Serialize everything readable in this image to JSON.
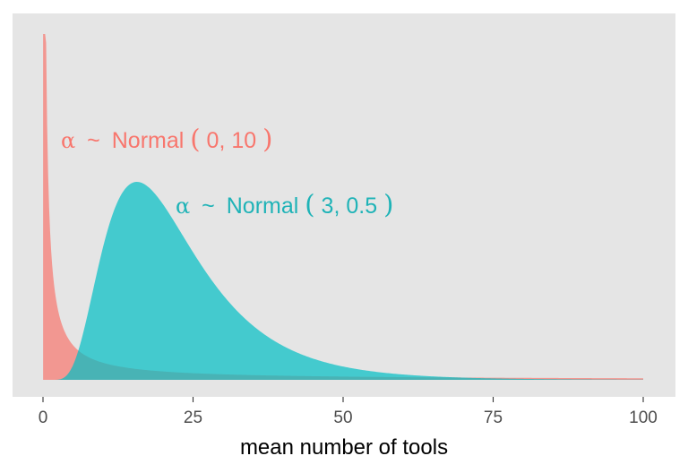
{
  "chart_data": {
    "type": "area",
    "xlabel": "mean number of tools",
    "ylabel": "",
    "xlim": [
      0,
      100
    ],
    "x_ticks": [
      "0",
      "25",
      "50",
      "75",
      "100"
    ],
    "grid": false,
    "legend": "none",
    "series": [
      {
        "color": "#F8766D",
        "distribution": "lognormal",
        "log_mean": 0,
        "log_sd": 10,
        "annotation": {
          "greek": "α",
          "tilde": "~",
          "name": "Normal",
          "lparen": "(",
          "args": "0, 10",
          "rparen": ")"
        }
      },
      {
        "color": "#00BFC4",
        "distribution": "lognormal",
        "log_mean": 3,
        "log_sd": 0.5,
        "annotation": {
          "greek": "α",
          "tilde": "~",
          "name": "Normal",
          "lparen": "(",
          "args": "3, 0.5",
          "rparen": ")"
        }
      }
    ]
  }
}
